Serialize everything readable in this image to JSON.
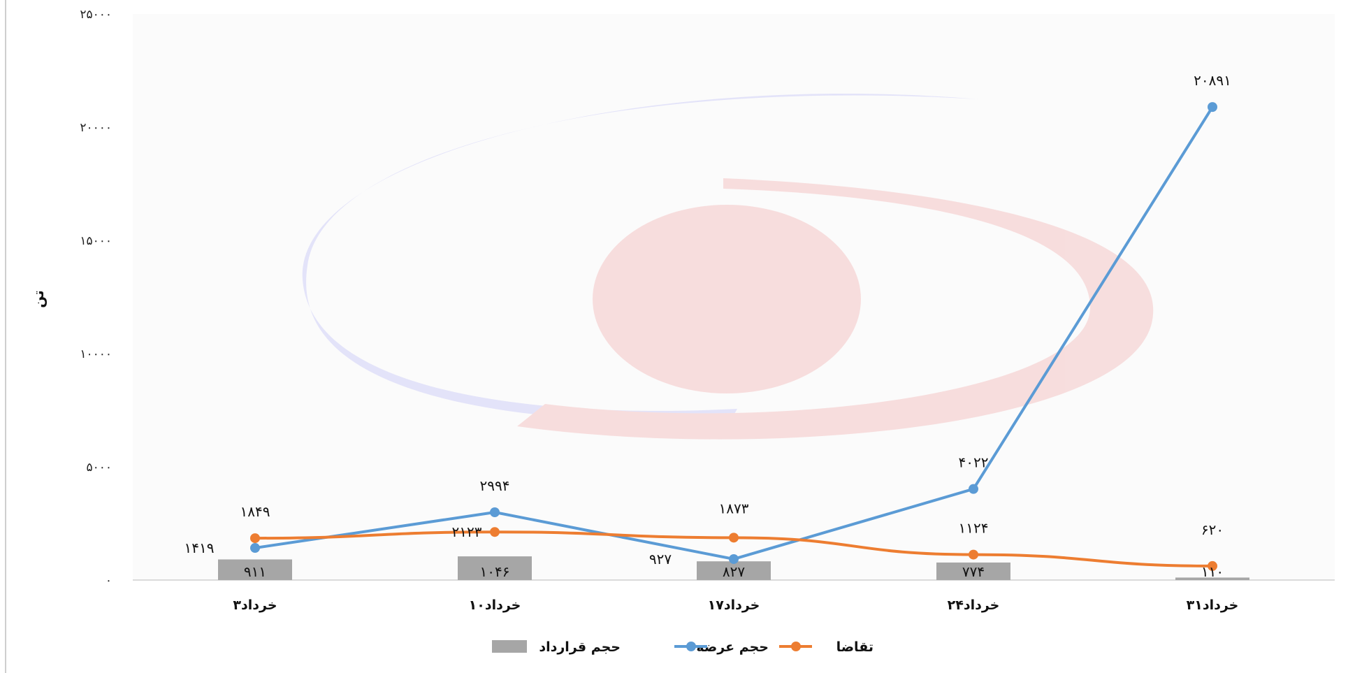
{
  "chart_data": {
    "type": "bar+line",
    "ylabel": "تن",
    "ylim": [
      0,
      25000
    ],
    "yticks": [
      "۰",
      "۵۰۰۰",
      "۱۰۰۰۰",
      "۱۵۰۰۰",
      "۲۰۰۰۰",
      "۲۵۰۰۰"
    ],
    "ytick_values": [
      0,
      5000,
      10000,
      15000,
      20000,
      25000
    ],
    "categories": [
      "۳خرداد",
      "۱۰خرداد",
      "۱۷خرداد",
      "۲۴خرداد",
      "۳۱خرداد"
    ],
    "legend_position": "bottom",
    "series": [
      {
        "name": "حجم قرارداد",
        "kind": "bar",
        "color": "#a6a6a6",
        "values": [
          911,
          1046,
          827,
          774,
          110
        ],
        "labels": [
          "۹۱۱",
          "۱۰۴۶",
          "۸۲۷",
          "۷۷۴",
          "۱۱۰"
        ]
      },
      {
        "name": "حجم عرضه",
        "kind": "line",
        "color": "#5b9bd5",
        "values": [
          1419,
          2994,
          927,
          4022,
          20891
        ],
        "labels": [
          "۱۴۱۹",
          "۲۹۹۴",
          "۹۲۷",
          "۴۰۲۲",
          "۲۰۸۹۱"
        ]
      },
      {
        "name": "تقاضا",
        "kind": "line",
        "color": "#ed7d31",
        "values": [
          1849,
          2123,
          1873,
          1124,
          620
        ],
        "labels": [
          "۱۸۴۹",
          "۲۱۲۳",
          "۱۸۷۳",
          "۱۱۲۴",
          "۶۲۰"
        ]
      }
    ]
  }
}
